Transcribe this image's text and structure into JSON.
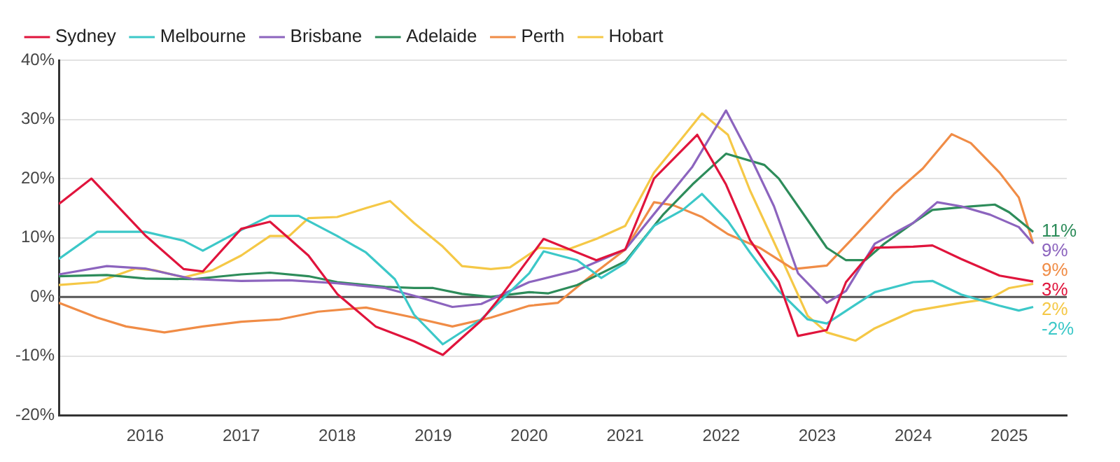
{
  "chart_data": {
    "type": "line",
    "legend": "top left",
    "grid": "y",
    "line_style": "solid",
    "marker": "none",
    "xlim": [
      2015.1,
      2025.6
    ],
    "xticks": [
      2016,
      2017,
      2018,
      2019,
      2020,
      2021,
      2022,
      2023,
      2024,
      2025
    ],
    "ylim": [
      -20,
      40
    ],
    "yticks": [
      {
        "value": -20,
        "label": "-20%"
      },
      {
        "value": -10,
        "label": "-10%"
      },
      {
        "value": 0,
        "label": "0%"
      },
      {
        "value": 10,
        "label": "10%"
      },
      {
        "value": 20,
        "label": "20%"
      },
      {
        "value": 30,
        "label": "30%"
      },
      {
        "value": 40,
        "label": "40%"
      }
    ],
    "ref_lines": [
      {
        "axis": "y",
        "value": 0,
        "color": "#555555"
      }
    ],
    "series": [
      {
        "name": "Sydney",
        "color": "#e0143c",
        "x": [
          2015.1,
          2015.44,
          2016,
          2016.4,
          2016.6,
          2017,
          2017.3,
          2017.7,
          2018,
          2018.4,
          2018.8,
          2019.1,
          2019.5,
          2019.7,
          2020.15,
          2020.7,
          2021,
          2021.3,
          2021.75,
          2022.05,
          2022.3,
          2022.6,
          2022.8,
          2023.1,
          2023.3,
          2023.6,
          2024,
          2024.2,
          2024.5,
          2024.9,
          2025.25
        ],
        "values": [
          15.7,
          20,
          10.4,
          4.7,
          4.3,
          11.5,
          12.7,
          7,
          0.5,
          -5,
          -7.5,
          -9.8,
          -4,
          0,
          9.8,
          6.2,
          8,
          20,
          27.4,
          19,
          9.6,
          2.5,
          -6.6,
          -5.6,
          2.5,
          8.3,
          8.5,
          8.7,
          6.4,
          3.6,
          2.6
        ],
        "value_labels": [
          null,
          null,
          null,
          null,
          null,
          null,
          null,
          null,
          null,
          null,
          null,
          null,
          null,
          null,
          null,
          null,
          null,
          null,
          null,
          null,
          null,
          null,
          null,
          null,
          null,
          null,
          null,
          null,
          null,
          null,
          "3%"
        ]
      },
      {
        "name": "Melbourne",
        "color": "#3cc8c8",
        "x": [
          2015.1,
          2015.5,
          2016,
          2016.4,
          2016.6,
          2017,
          2017.3,
          2017.6,
          2018,
          2018.3,
          2018.6,
          2018.8,
          2019.1,
          2019.5,
          2020,
          2020.15,
          2020.5,
          2020.75,
          2021,
          2021.3,
          2021.6,
          2021.8,
          2022.07,
          2022.3,
          2022.6,
          2022.9,
          2023.1,
          2023.4,
          2023.6,
          2024,
          2024.2,
          2024.5,
          2024.9,
          2025.1,
          2025.25
        ],
        "values": [
          6.4,
          11,
          11,
          9.5,
          7.8,
          11.3,
          13.7,
          13.7,
          10.3,
          7.5,
          3,
          -3,
          -8,
          -3.8,
          4,
          7.7,
          6.2,
          3.2,
          5.7,
          12,
          14.7,
          17.4,
          12.8,
          7.5,
          1,
          -3.8,
          -4.5,
          -1.3,
          0.8,
          2.5,
          2.7,
          0.4,
          -1.5,
          -2.3,
          -1.7
        ],
        "value_labels": [
          null,
          null,
          null,
          null,
          null,
          null,
          null,
          null,
          null,
          null,
          null,
          null,
          null,
          null,
          null,
          null,
          null,
          null,
          null,
          null,
          null,
          null,
          null,
          null,
          null,
          null,
          null,
          null,
          null,
          null,
          null,
          null,
          null,
          null,
          "-2%"
        ]
      },
      {
        "name": "Brisbane",
        "color": "#8c64be",
        "x": [
          2015.1,
          2015.6,
          2016,
          2016.5,
          2017,
          2017.5,
          2018,
          2018.5,
          2018.8,
          2019.2,
          2019.5,
          2020,
          2020.5,
          2021,
          2021.4,
          2021.7,
          2022.05,
          2022.3,
          2022.55,
          2022.8,
          2023.1,
          2023.3,
          2023.6,
          2024,
          2024.25,
          2024.5,
          2024.8,
          2025.1,
          2025.25
        ],
        "values": [
          3.8,
          5.2,
          4.8,
          3,
          2.7,
          2.8,
          2.3,
          1.5,
          0.2,
          -1.7,
          -1.2,
          2.5,
          4.5,
          8,
          16,
          22,
          31.5,
          23.8,
          15.3,
          4,
          -1,
          1,
          9,
          12.5,
          16,
          15.3,
          13.9,
          11.8,
          9
        ],
        "value_labels": [
          null,
          null,
          null,
          null,
          null,
          null,
          null,
          null,
          null,
          null,
          null,
          null,
          null,
          null,
          null,
          null,
          null,
          null,
          null,
          null,
          null,
          null,
          null,
          null,
          null,
          null,
          null,
          null,
          "9%"
        ]
      },
      {
        "name": "Adelaide",
        "color": "#2d8c5a",
        "x": [
          2015.1,
          2015.6,
          2016,
          2016.5,
          2017,
          2017.3,
          2017.7,
          2018,
          2018.5,
          2018.8,
          2019,
          2019.3,
          2019.6,
          2020,
          2020.2,
          2020.5,
          2021,
          2021.4,
          2021.7,
          2022.05,
          2022.45,
          2022.6,
          2022.9,
          2023.1,
          2023.3,
          2023.5,
          2023.7,
          2024,
          2024.2,
          2024.6,
          2024.85,
          2025,
          2025.25
        ],
        "values": [
          3.5,
          3.7,
          3.1,
          3,
          3.8,
          4.1,
          3.5,
          2.5,
          1.7,
          1.5,
          1.5,
          0.5,
          0,
          0.8,
          0.6,
          2,
          6,
          14,
          19,
          24.2,
          22.3,
          20,
          13,
          8.3,
          6.2,
          6.2,
          9,
          12.5,
          14.7,
          15.3,
          15.6,
          14.3,
          11
        ],
        "value_labels": [
          null,
          null,
          null,
          null,
          null,
          null,
          null,
          null,
          null,
          null,
          null,
          null,
          null,
          null,
          null,
          null,
          null,
          null,
          null,
          null,
          null,
          null,
          null,
          null,
          null,
          null,
          null,
          null,
          null,
          null,
          null,
          null,
          "11%"
        ]
      },
      {
        "name": "Perth",
        "color": "#f08c46",
        "x": [
          2015.1,
          2015.5,
          2015.8,
          2016.2,
          2016.6,
          2017,
          2017.4,
          2017.8,
          2018.3,
          2018.8,
          2019.2,
          2019.6,
          2020,
          2020.3,
          2020.6,
          2021,
          2021.3,
          2021.5,
          2021.8,
          2022.07,
          2022.4,
          2022.75,
          2023.1,
          2023.4,
          2023.8,
          2024.1,
          2024.4,
          2024.6,
          2024.9,
          2025.1,
          2025.25
        ],
        "values": [
          -1,
          -3.5,
          -5,
          -6,
          -5,
          -4.2,
          -3.8,
          -2.5,
          -1.8,
          -3.5,
          -5,
          -3.5,
          -1.5,
          -1,
          3,
          8,
          16,
          15.5,
          13.5,
          10.6,
          8.3,
          4.7,
          5.3,
          10.4,
          17.4,
          21.7,
          27.5,
          26,
          21,
          16.8,
          9
        ],
        "value_labels": [
          null,
          null,
          null,
          null,
          null,
          null,
          null,
          null,
          null,
          null,
          null,
          null,
          null,
          null,
          null,
          null,
          null,
          null,
          null,
          null,
          null,
          null,
          null,
          null,
          null,
          null,
          null,
          null,
          null,
          null,
          "9%"
        ]
      },
      {
        "name": "Hobart",
        "color": "#f5c846",
        "x": [
          2015.1,
          2015.5,
          2015.9,
          2016.1,
          2016.4,
          2016.7,
          2017,
          2017.3,
          2017.5,
          2017.7,
          2018,
          2018.3,
          2018.55,
          2018.8,
          2019.1,
          2019.3,
          2019.6,
          2019.8,
          2020.1,
          2020.4,
          2020.7,
          2021,
          2021.3,
          2021.6,
          2021.8,
          2022.07,
          2022.3,
          2022.6,
          2022.9,
          2023.1,
          2023.4,
          2023.6,
          2024,
          2024.5,
          2024.8,
          2025,
          2025.25
        ],
        "values": [
          2,
          2.5,
          4.8,
          4.5,
          3.3,
          4.5,
          7,
          10.3,
          10.3,
          13.3,
          13.5,
          15,
          16.2,
          12.5,
          8.5,
          5.2,
          4.7,
          5,
          8.3,
          8,
          9.8,
          12,
          21,
          27,
          31,
          27.4,
          18,
          7.5,
          -3.2,
          -6,
          -7.4,
          -5.3,
          -2.4,
          -1,
          -0.3,
          1.5,
          2.2
        ],
        "value_labels": [
          null,
          null,
          null,
          null,
          null,
          null,
          null,
          null,
          null,
          null,
          null,
          null,
          null,
          null,
          null,
          null,
          null,
          null,
          null,
          null,
          null,
          null,
          null,
          null,
          null,
          null,
          null,
          null,
          null,
          null,
          null,
          null,
          null,
          null,
          null,
          null,
          "2%"
        ]
      }
    ]
  }
}
